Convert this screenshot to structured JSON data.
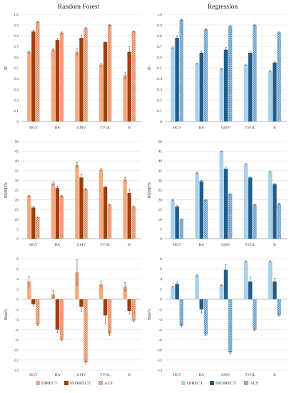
{
  "columns": [
    {
      "title": "Random Forest",
      "colors": {
        "DIRECT": "#f4a97e",
        "INDIRECT": "#9c3f0d",
        "ALS": "#e8956a"
      },
      "legend": [
        "DIRECT",
        "INDIRECT",
        "ALS"
      ]
    },
    {
      "title": "Regression",
      "colors": {
        "DIRECT": "#a9d0ea",
        "INDIRECT": "#1f5c8a",
        "ALS": "#7fb3d9"
      },
      "legend": [
        "DIRECT",
        "INDIRECT",
        "ALS"
      ]
    }
  ],
  "chart_data": [
    {
      "type": "bar",
      "column": 0,
      "row": 0,
      "categories": [
        "HGT",
        "BA",
        "GMV",
        "TVOL",
        "B"
      ],
      "ylabel": "R²",
      "ylim": [
        0,
        1.0
      ],
      "yticks": [
        "0",
        "0.1",
        "0.2",
        "0.3",
        "0.4",
        "0.5",
        "0.6",
        "0.7",
        "0.8",
        "0.9",
        "1.0"
      ],
      "grid": true,
      "series": [
        {
          "name": "DIRECT",
          "values": [
            0.65,
            0.67,
            0.65,
            0.53,
            0.43
          ],
          "errors": [
            0.01,
            0.01,
            0.03,
            0.01,
            0.03
          ]
        },
        {
          "name": "INDIRECT",
          "values": [
            0.84,
            0.76,
            0.78,
            0.74,
            0.65
          ],
          "errors": [
            0.01,
            0.01,
            0.02,
            0.005,
            0.05
          ]
        },
        {
          "name": "ALS",
          "values": [
            0.93,
            0.83,
            0.87,
            0.9,
            0.84
          ],
          "errors": [
            0.005,
            0.005,
            0.005,
            0.005,
            0.005
          ]
        }
      ]
    },
    {
      "type": "bar",
      "column": 1,
      "row": 0,
      "categories": [
        "HGT",
        "BA",
        "GMV",
        "TVOL",
        "B"
      ],
      "ylabel": "R²",
      "ylim": [
        0,
        1.0
      ],
      "yticks": [
        "0",
        "0.1",
        "0.2",
        "0.3",
        "0.4",
        "0.5",
        "0.6",
        "0.7",
        "0.8",
        "0.9",
        "1.0"
      ],
      "grid": true,
      "series": [
        {
          "name": "DIRECT",
          "values": [
            0.69,
            0.54,
            0.49,
            0.53,
            0.47
          ],
          "errors": [
            0.005,
            0.005,
            0.005,
            0.005,
            0.005
          ]
        },
        {
          "name": "INDIRECT",
          "values": [
            0.78,
            0.64,
            0.67,
            0.64,
            0.55
          ],
          "errors": [
            0.02,
            0.015,
            0.02,
            0.015,
            0.01
          ]
        },
        {
          "name": "ALS",
          "values": [
            0.95,
            0.86,
            0.89,
            0.9,
            0.83
          ],
          "errors": [
            0.005,
            0.005,
            0.005,
            0.005,
            0.005
          ]
        }
      ]
    },
    {
      "type": "bar",
      "column": 0,
      "row": 1,
      "categories": [
        "HGT",
        "BA",
        "GMV",
        "TVOL",
        "B"
      ],
      "ylabel": "RMSD%",
      "ylim": [
        0,
        50
      ],
      "yticks": [
        "0",
        "5",
        "10",
        "15",
        "20",
        "25",
        "30",
        "35",
        "40",
        "45",
        "50"
      ],
      "grid": true,
      "series": [
        {
          "name": "DIRECT",
          "values": [
            22,
            28.5,
            38,
            35.5,
            30.5
          ],
          "errors": [
            0.3,
            0.8,
            1.2,
            0.6,
            1.0
          ]
        },
        {
          "name": "INDIRECT",
          "values": [
            16,
            26,
            31.5,
            26.5,
            23.5
          ],
          "errors": [
            0.8,
            1.0,
            1.5,
            0.6,
            1.6
          ]
        },
        {
          "name": "ALS",
          "values": [
            11,
            22,
            25.5,
            17.5,
            16.5
          ],
          "errors": [
            0.2,
            0.3,
            0.3,
            0.2,
            0.2
          ]
        }
      ]
    },
    {
      "type": "bar",
      "column": 1,
      "row": 1,
      "categories": [
        "HGT",
        "BA",
        "GMV",
        "TVOL",
        "B"
      ],
      "ylabel": "RMSD%",
      "ylim": [
        0,
        50
      ],
      "yticks": [
        "0",
        "5",
        "10",
        "15",
        "20",
        "25",
        "30",
        "35",
        "40",
        "45",
        "50"
      ],
      "grid": true,
      "series": [
        {
          "name": "DIRECT",
          "values": [
            20,
            34,
            45,
            38.5,
            34.5
          ],
          "errors": [
            0.2,
            0.2,
            0.2,
            0.2,
            0.2
          ]
        },
        {
          "name": "INDIRECT",
          "values": [
            16.5,
            29.5,
            36,
            31.5,
            28
          ],
          "errors": [
            0.5,
            0.5,
            0.8,
            0.5,
            0.4
          ]
        },
        {
          "name": "ALS",
          "values": [
            10,
            20,
            23,
            17.5,
            18
          ],
          "errors": [
            0.2,
            0.2,
            0.2,
            0.2,
            0.2
          ]
        }
      ]
    },
    {
      "type": "bar",
      "column": 0,
      "row": 2,
      "categories": [
        "HGT",
        "BA",
        "GMV",
        "TVOL",
        "B"
      ],
      "ylabel": "Bias%",
      "ylim": [
        -14,
        8
      ],
      "yticks": [
        "-14",
        "-12",
        "-10",
        "-8",
        "-6",
        "-4",
        "-2",
        "0",
        "2",
        "4",
        "6",
        "8"
      ],
      "grid": true,
      "series": [
        {
          "name": "DIRECT",
          "values": [
            3.5,
            1.0,
            5.3,
            3.0,
            2.5
          ],
          "errors": [
            1.0,
            0.7,
            2.5,
            0.6,
            0.8
          ]
        },
        {
          "name": "INDIRECT",
          "values": [
            -1.0,
            -6.0,
            -1.5,
            -3.2,
            -2.3
          ],
          "errors": [
            0.4,
            0.6,
            0.9,
            1.5,
            0.6
          ]
        },
        {
          "name": "ALS",
          "values": [
            -5.0,
            -8.0,
            -12.5,
            -6.8,
            -4.3
          ],
          "errors": [
            0.2,
            0.2,
            0.3,
            0.4,
            0.2
          ]
        }
      ]
    },
    {
      "type": "bar",
      "column": 1,
      "row": 2,
      "categories": [
        "HGT",
        "BA",
        "GMV",
        "TVOL",
        "B"
      ],
      "ylabel": "Bias%",
      "ylim": [
        -14,
        8
      ],
      "yticks": [
        "-14",
        "-12",
        "-10",
        "-8",
        "-6",
        "-4",
        "-2",
        "0",
        "2",
        "4",
        "6",
        "8"
      ],
      "grid": true,
      "series": [
        {
          "name": "DIRECT",
          "values": [
            2.5,
            4.7,
            2.8,
            7.5,
            7.5
          ],
          "errors": [
            0.1,
            0.1,
            0.1,
            0.1,
            0.1
          ]
        },
        {
          "name": "INDIRECT",
          "values": [
            3.0,
            -2.0,
            5.8,
            3.5,
            3.5
          ],
          "errors": [
            0.4,
            0.7,
            1.0,
            0.9,
            0.6
          ]
        },
        {
          "name": "ALS",
          "values": [
            -5.2,
            -7.0,
            -10.5,
            -6.0,
            -3.2
          ],
          "errors": [
            0.2,
            0.2,
            0.2,
            0.2,
            0.2
          ]
        }
      ]
    }
  ]
}
